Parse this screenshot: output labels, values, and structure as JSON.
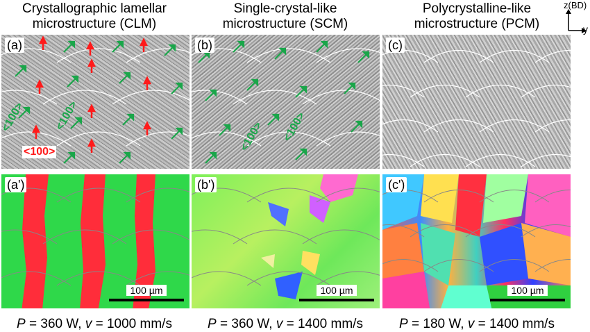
{
  "columns": [
    {
      "title_line1": "Crystallographic lamellar",
      "title_line2": "microstructure (CLM)",
      "sem_label": "(a)",
      "ebsd_label": "(a')",
      "p_var": "P",
      "p_val": " = 360 W, ",
      "v_var": "v",
      "v_val": " = 1000 mm/s"
    },
    {
      "title_line1": "Single-crystal-like",
      "title_line2": "microstructure (SCM)",
      "sem_label": "(b)",
      "ebsd_label": "(b')",
      "p_var": "P",
      "p_val": " = 360 W, ",
      "v_var": "v",
      "v_val": " = 1400 mm/s"
    },
    {
      "title_line1": "Polycrystalline-like",
      "title_line2": "microstructure (PCM)",
      "sem_label": "(c)",
      "ebsd_label": "(c')",
      "p_var": "P",
      "p_val": " = 180 W, ",
      "v_var": "v",
      "v_val": " = 1400 mm/s"
    }
  ],
  "scale_bar": "100 µm",
  "annotations": {
    "red_100": "<100>",
    "green_100": "<100>"
  },
  "axes": {
    "z": "z(BD)",
    "y": "y"
  },
  "colors": {
    "red_arrow": "#ff1a1a",
    "green_arrow": "#1aa64a"
  }
}
